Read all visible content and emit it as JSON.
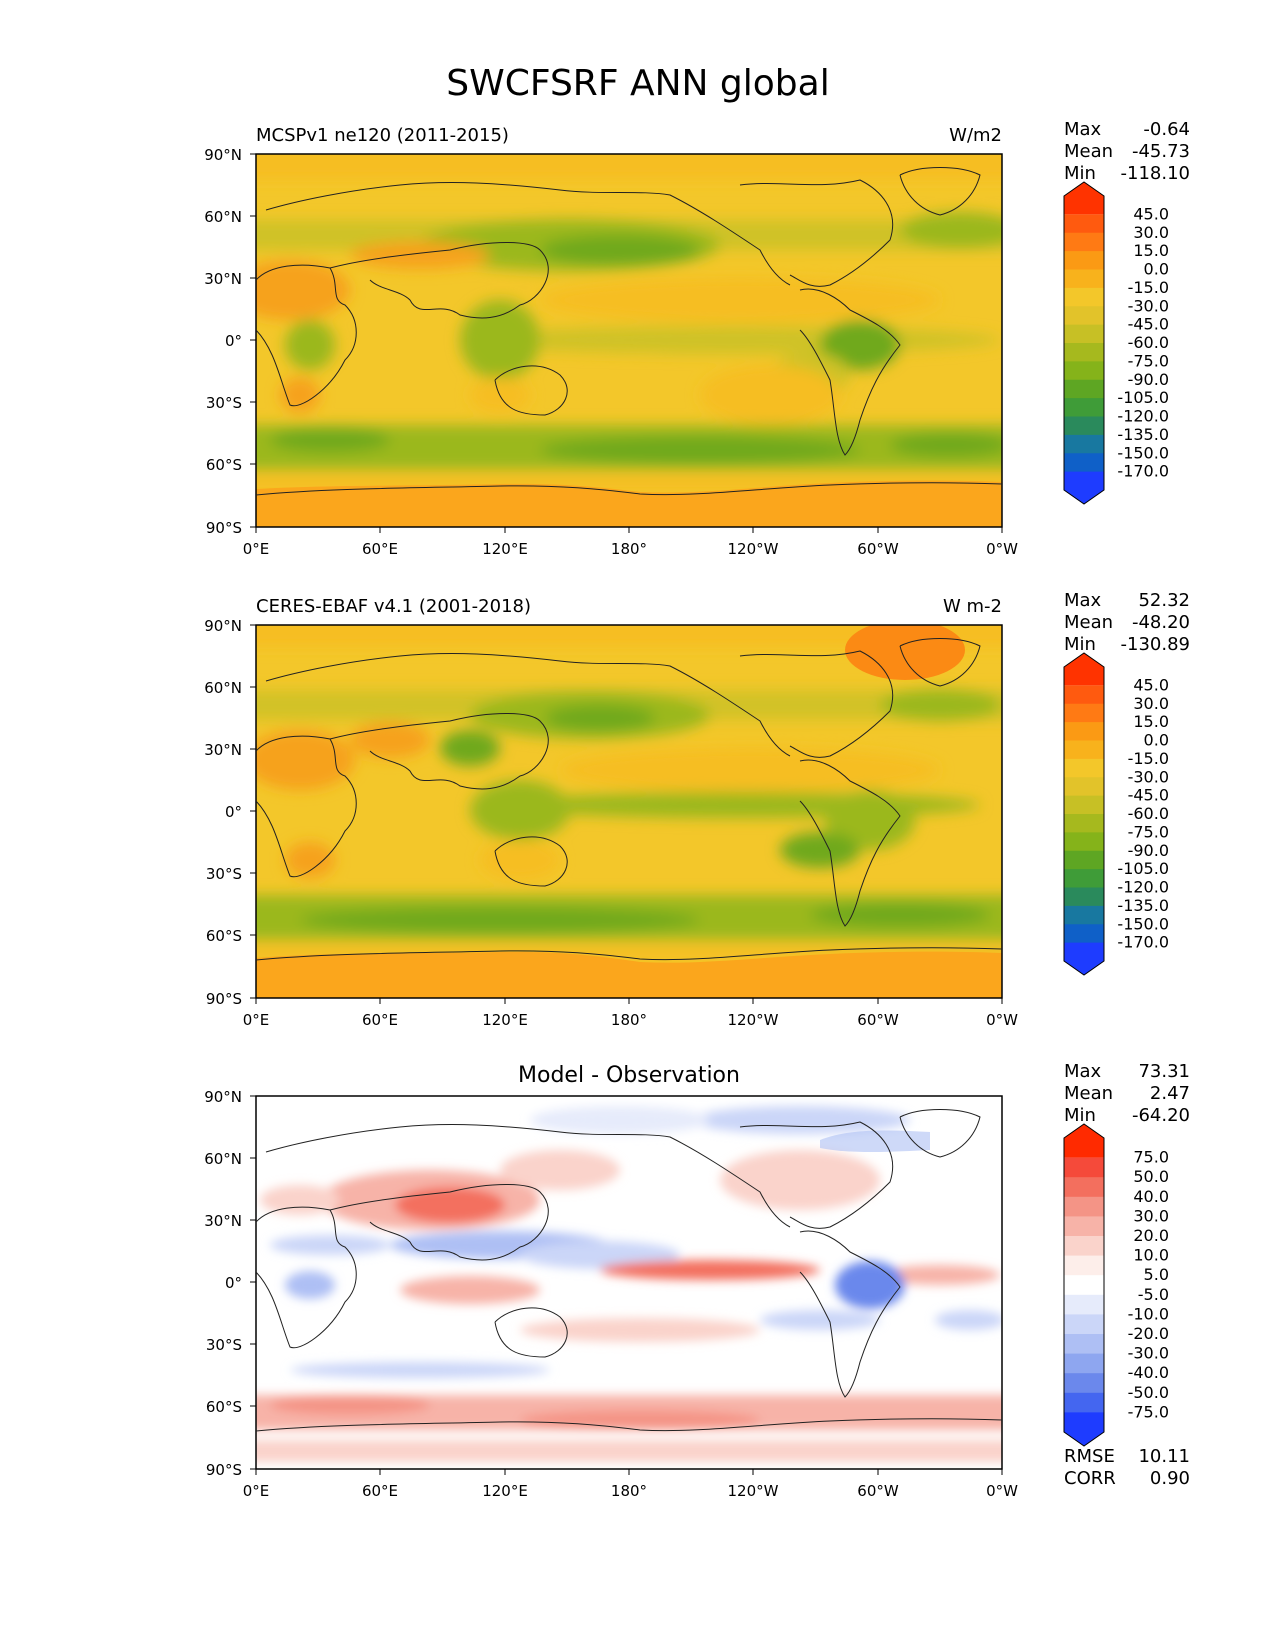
{
  "title": "SWCFSRF ANN global",
  "lat_ticks": [
    "90°N",
    "60°N",
    "30°N",
    "0°",
    "30°S",
    "60°S",
    "90°S"
  ],
  "lon_ticks": [
    "0°E",
    "60°E",
    "120°E",
    "180°",
    "120°W",
    "60°W",
    "0°W"
  ],
  "panels": [
    {
      "left_title": "MCSPv1 ne120 (2011-2015)",
      "right_title": "W/m2",
      "stats": [
        {
          "label": "Max",
          "value": "-0.64"
        },
        {
          "label": "Mean",
          "value": "-45.73"
        },
        {
          "label": "Min",
          "value": "-118.10"
        }
      ],
      "colorbar_levels": [
        "45.0",
        "30.0",
        "15.0",
        "0.0",
        "-15.0",
        "-30.0",
        "-45.0",
        "-60.0",
        "-75.0",
        "-90.0",
        "-105.0",
        "-120.0",
        "-135.0",
        "-150.0",
        "-170.0"
      ],
      "colorbar_colors": [
        "#ff3300",
        "#ff5a0f",
        "#ff7a14",
        "#fb9a14",
        "#f8b21c",
        "#f3c72a",
        "#e2c32a",
        "#c7c025",
        "#a6b91e",
        "#85b31a",
        "#5ea623",
        "#3f9c38",
        "#2a8a5c",
        "#1878a0",
        "#0f60c8",
        "#1e3cff"
      ]
    },
    {
      "left_title": "CERES-EBAF v4.1 (2001-2018)",
      "right_title": "W m-2",
      "stats": [
        {
          "label": "Max",
          "value": "52.32"
        },
        {
          "label": "Mean",
          "value": "-48.20"
        },
        {
          "label": "Min",
          "value": "-130.89"
        }
      ],
      "colorbar_levels": [
        "45.0",
        "30.0",
        "15.0",
        "0.0",
        "-15.0",
        "-30.0",
        "-45.0",
        "-60.0",
        "-75.0",
        "-90.0",
        "-105.0",
        "-120.0",
        "-135.0",
        "-150.0",
        "-170.0"
      ],
      "colorbar_colors": [
        "#ff3300",
        "#ff5a0f",
        "#ff7a14",
        "#fb9a14",
        "#f8b21c",
        "#f3c72a",
        "#e2c32a",
        "#c7c025",
        "#a6b91e",
        "#85b31a",
        "#5ea623",
        "#3f9c38",
        "#2a8a5c",
        "#1878a0",
        "#0f60c8",
        "#1e3cff"
      ]
    },
    {
      "center_title": "Model - Observation",
      "stats": [
        {
          "label": "Max",
          "value": "73.31"
        },
        {
          "label": "Mean",
          "value": "2.47"
        },
        {
          "label": "Min",
          "value": "-64.20"
        }
      ],
      "colorbar_levels": [
        "75.0",
        "50.0",
        "40.0",
        "30.0",
        "20.0",
        "10.0",
        "5.0",
        "-5.0",
        "-10.0",
        "-20.0",
        "-30.0",
        "-40.0",
        "-50.0",
        "-75.0"
      ],
      "colorbar_colors": [
        "#ff2a00",
        "#f54a3a",
        "#f36f5e",
        "#f49486",
        "#f7b3a8",
        "#fad3cb",
        "#fdeeea",
        "#ffffff",
        "#e6ebfb",
        "#cbd6f8",
        "#aebff4",
        "#8ea6f0",
        "#6b88ec",
        "#4466f0",
        "#1e3cff"
      ],
      "extra_stats": [
        {
          "label": "RMSE",
          "value": "10.11"
        },
        {
          "label": "CORR",
          "value": "0.90"
        }
      ]
    }
  ],
  "colors": {
    "panel_bg_model": "#f3c72a",
    "panel_bg_obs": "#f3c72a",
    "panel_bg_diff": "#ffffff",
    "polar_orange": "#fba61c",
    "storm_green": "#9bb81f",
    "deep_green": "#6fa91f"
  }
}
